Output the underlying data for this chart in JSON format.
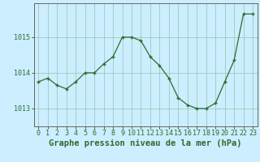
{
  "hours": [
    0,
    1,
    2,
    3,
    4,
    5,
    6,
    7,
    8,
    9,
    10,
    11,
    12,
    13,
    14,
    15,
    16,
    17,
    18,
    19,
    20,
    21,
    22,
    23
  ],
  "pressure": [
    1013.75,
    1013.85,
    1013.65,
    1013.55,
    1013.75,
    1014.0,
    1014.0,
    1014.25,
    1014.45,
    1015.0,
    1015.0,
    1014.9,
    1014.45,
    1014.2,
    1013.85,
    1013.3,
    1013.1,
    1013.0,
    1013.0,
    1013.15,
    1013.75,
    1014.35,
    1015.65,
    1015.65
  ],
  "line_color": "#2d6b2d",
  "marker": "+",
  "background_color": "#cceeff",
  "grid_color": "#99ccbb",
  "xlabel": "Graphe pression niveau de la mer (hPa)",
  "xlabel_fontsize": 7.5,
  "xlabel_color": "#2d6b2d",
  "ylabel_ticks": [
    1013,
    1014,
    1015
  ],
  "ylim": [
    1012.5,
    1015.95
  ],
  "xlim": [
    -0.5,
    23.5
  ],
  "tick_color": "#2d6b2d",
  "tick_fontsize": 6,
  "spine_color": "#666666"
}
